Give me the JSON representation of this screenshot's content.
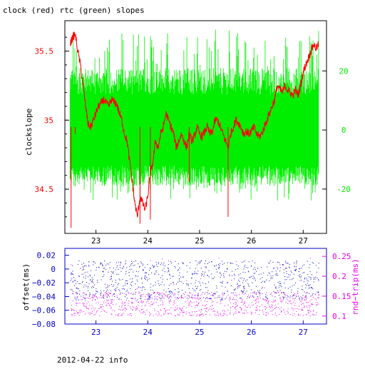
{
  "title": "clock (red) rtc (green) slopes",
  "footer": "2012-04-22 info",
  "colors": {
    "clock": "#ff0000",
    "rtc": "#00ee00",
    "offset": "#0000cc",
    "rndtrip": "#ee00ee",
    "frame": "#000000"
  },
  "chart_data": [
    {
      "type": "line",
      "title": "clock (red) rtc (green) slopes",
      "ylabel": "clockslope",
      "y2label": "",
      "xlim": [
        22.4,
        27.45
      ],
      "ylim": [
        34.18,
        35.72
      ],
      "y2lim": [
        -35,
        37
      ],
      "x_ticks": [
        "23",
        "24",
        "25",
        "26",
        "27"
      ],
      "y_ticks": [
        "34.5",
        "35",
        "35.5"
      ],
      "y2_ticks": [
        "-20",
        "0",
        "20"
      ],
      "grid": false,
      "series": [
        {
          "name": "clock",
          "axis": "left",
          "x": [
            22.5,
            22.55,
            22.6,
            22.65,
            22.7,
            22.75,
            22.8,
            22.85,
            22.9,
            22.95,
            23.0,
            23.05,
            23.1,
            23.15,
            23.2,
            23.25,
            23.3,
            23.35,
            23.4,
            23.45,
            23.5,
            23.55,
            23.6,
            23.65,
            23.7,
            23.75,
            23.8,
            23.85,
            23.9,
            23.95,
            24.0,
            24.05,
            24.1,
            24.15,
            24.2,
            24.25,
            24.3,
            24.35,
            24.4,
            24.45,
            24.5,
            24.55,
            24.6,
            24.65,
            24.7,
            24.75,
            24.8,
            24.85,
            24.9,
            24.95,
            25.0,
            25.05,
            25.1,
            25.15,
            25.2,
            25.25,
            25.3,
            25.35,
            25.4,
            25.45,
            25.5,
            25.55,
            25.6,
            25.65,
            25.7,
            25.75,
            25.8,
            25.85,
            25.9,
            25.95,
            26.0,
            26.05,
            26.1,
            26.15,
            26.2,
            26.25,
            26.3,
            26.35,
            26.4,
            26.45,
            26.5,
            26.55,
            26.6,
            26.65,
            26.7,
            26.75,
            26.8,
            26.85,
            26.9,
            26.95,
            27.0,
            27.05,
            27.1,
            27.15,
            27.2,
            27.25,
            27.3
          ],
          "y": [
            35.55,
            35.6,
            35.62,
            35.5,
            35.4,
            35.25,
            35.1,
            34.97,
            34.95,
            35.0,
            35.05,
            35.1,
            35.12,
            35.15,
            35.12,
            35.1,
            35.15,
            35.13,
            35.12,
            35.05,
            35.0,
            34.9,
            34.85,
            34.7,
            34.55,
            34.4,
            34.3,
            34.45,
            34.4,
            34.35,
            34.45,
            34.6,
            34.7,
            34.85,
            34.8,
            34.9,
            34.95,
            35.05,
            35.0,
            34.95,
            34.9,
            34.8,
            34.85,
            34.9,
            34.85,
            34.8,
            34.9,
            34.85,
            34.88,
            34.95,
            34.9,
            34.88,
            34.92,
            34.95,
            34.9,
            34.92,
            35.0,
            35.0,
            34.95,
            34.9,
            34.85,
            34.8,
            34.9,
            34.95,
            35.0,
            34.98,
            34.95,
            34.9,
            34.92,
            34.9,
            34.92,
            34.95,
            34.9,
            34.88,
            34.9,
            34.95,
            35.0,
            35.05,
            35.1,
            35.15,
            35.25,
            35.22,
            35.2,
            35.25,
            35.22,
            35.2,
            35.18,
            35.22,
            35.18,
            35.25,
            35.35,
            35.4,
            35.45,
            35.5,
            35.55,
            35.52,
            35.55
          ],
          "visible_range": [
            34.22,
            35.68
          ]
        },
        {
          "name": "rtc",
          "axis": "right",
          "x": [
            22.5,
            27.3
          ],
          "y": [
            0,
            0
          ],
          "visible_range": [
            -25,
            35
          ]
        }
      ]
    },
    {
      "type": "scatter",
      "ylabel": "offset(ms)",
      "y2label": "rnd−trip(ms)",
      "xlim": [
        22.4,
        27.45
      ],
      "ylim": [
        -0.08,
        0.03
      ],
      "y2lim": [
        0.08,
        0.27
      ],
      "x_ticks": [
        "23",
        "24",
        "25",
        "26",
        "27"
      ],
      "y_ticks": [
        "0.02",
        "0",
        "−0.02",
        "−0.04",
        "−0.06",
        "−0.08"
      ],
      "y2_ticks": [
        "0.25",
        "0.2",
        "0.15",
        "0.1"
      ],
      "grid": false,
      "series": [
        {
          "name": "offset",
          "axis": "left",
          "x_range": [
            22.5,
            27.3
          ],
          "y_range": [
            -0.045,
            0.012
          ]
        },
        {
          "name": "rnd-trip",
          "axis": "right",
          "x_range": [
            22.5,
            27.3
          ],
          "y_range": [
            0.1,
            0.25
          ]
        }
      ]
    }
  ]
}
